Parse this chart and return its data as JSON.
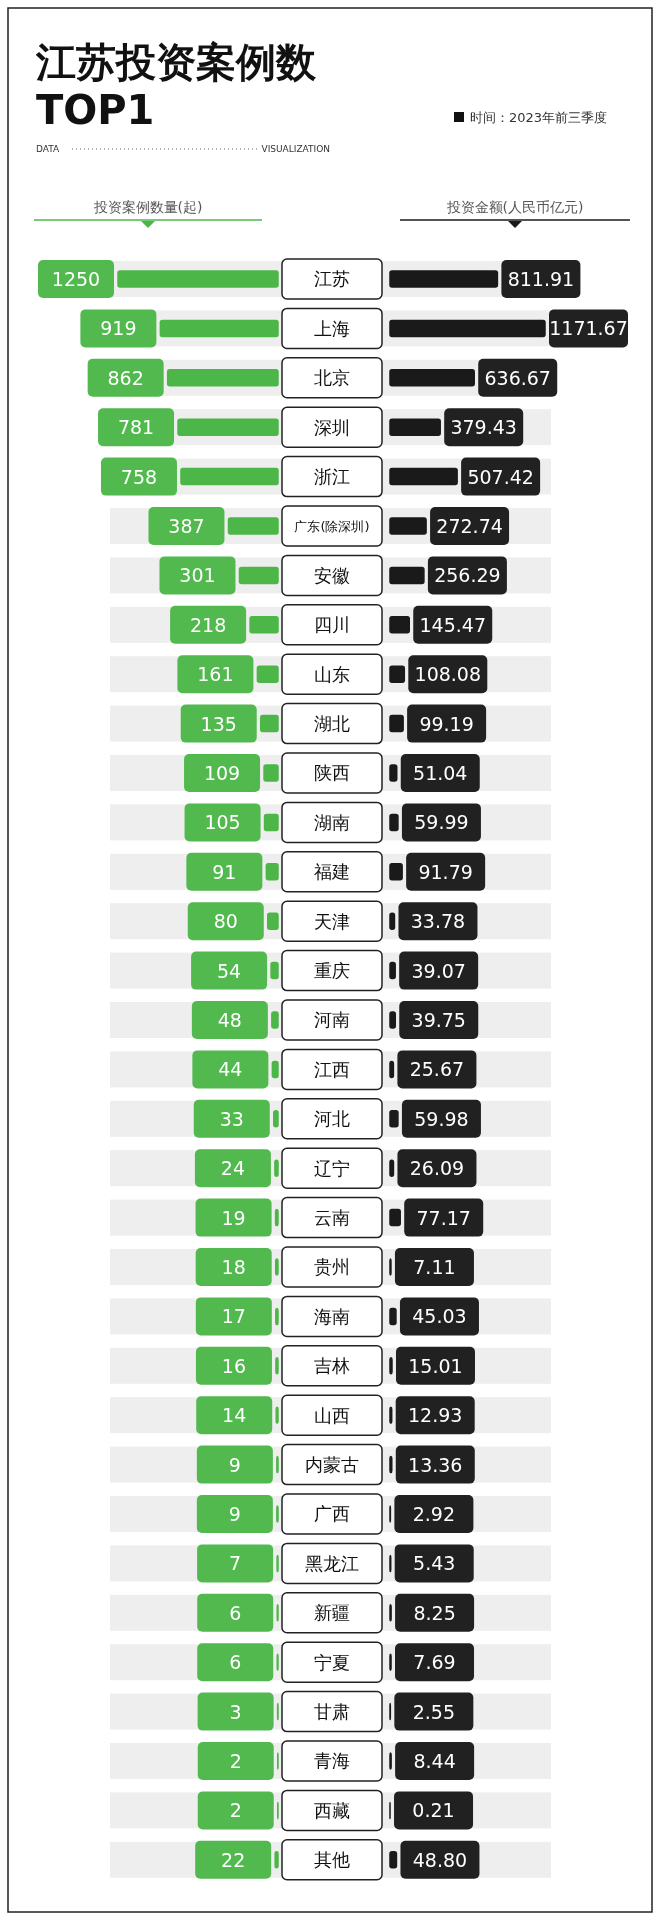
{
  "chart_data": [
    {
      "type": "bar",
      "orientation": "horizontal",
      "title": "江苏投资案例数TOP1",
      "annotations": [
        "DATA",
        "VISUALIZATION",
        "时间：2023年前三季度"
      ],
      "xlabel": "投资案例数量(起)",
      "color": "#4cb748",
      "data_labels": true,
      "categories": [
        "江苏",
        "上海",
        "北京",
        "深圳",
        "浙江",
        "广东(除深圳)",
        "安徽",
        "四川",
        "山东",
        "湖北",
        "陕西",
        "湖南",
        "福建",
        "天津",
        "重庆",
        "河南",
        "江西",
        "河北",
        "辽宁",
        "云南",
        "贵州",
        "海南",
        "吉林",
        "山西",
        "内蒙古",
        "广西",
        "黑龙江",
        "新疆",
        "宁夏",
        "甘肃",
        "青海",
        "西藏",
        "其他"
      ],
      "values": [
        1250,
        919,
        862,
        781,
        758,
        387,
        301,
        218,
        161,
        135,
        109,
        105,
        91,
        80,
        54,
        48,
        44,
        33,
        24,
        19,
        18,
        17,
        16,
        14,
        9,
        9,
        7,
        6,
        6,
        3,
        2,
        2,
        22
      ]
    },
    {
      "type": "bar",
      "orientation": "horizontal",
      "xlabel": "投资金额(人民币亿元)",
      "color": "#1a1a1a",
      "categories": [
        null,
        null,
        null,
        null,
        null,
        null,
        null,
        null,
        null,
        null,
        null,
        null,
        null,
        null,
        null,
        null,
        null,
        null,
        null,
        null,
        null,
        null,
        null,
        null,
        null,
        null,
        null,
        null,
        null,
        null,
        null,
        null,
        null
      ],
      "values": [
        811.91,
        1171.67,
        636.67,
        379.43,
        507.42,
        272.74,
        256.29,
        145.47,
        108.08,
        99.19,
        51.04,
        59.99,
        91.79,
        33.78,
        39.07,
        39.75,
        25.67,
        59.98,
        26.09,
        77.17,
        7.11,
        45.03,
        15.01,
        12.93,
        13.36,
        2.92,
        5.43,
        8.25,
        7.69,
        2.55,
        8.44,
        0.21,
        48.8
      ],
      "value_labels": [
        "811.91",
        "1171.67",
        "636.67",
        "379.43",
        "507.42",
        "272.74",
        "256.29",
        "145.47",
        "108.08",
        "99.19",
        "51.04",
        "59.99",
        "91.79",
        "33.78",
        "39.07",
        "39.75",
        "25.67",
        "59.98",
        "26.09",
        "77.17",
        "7.11",
        "45.03",
        "15.01",
        "12.93",
        "13.36",
        "2.92",
        "5.43",
        "8.25",
        "7.69",
        "2.55",
        "8.44",
        "0.21",
        "48.80"
      ]
    }
  ]
}
